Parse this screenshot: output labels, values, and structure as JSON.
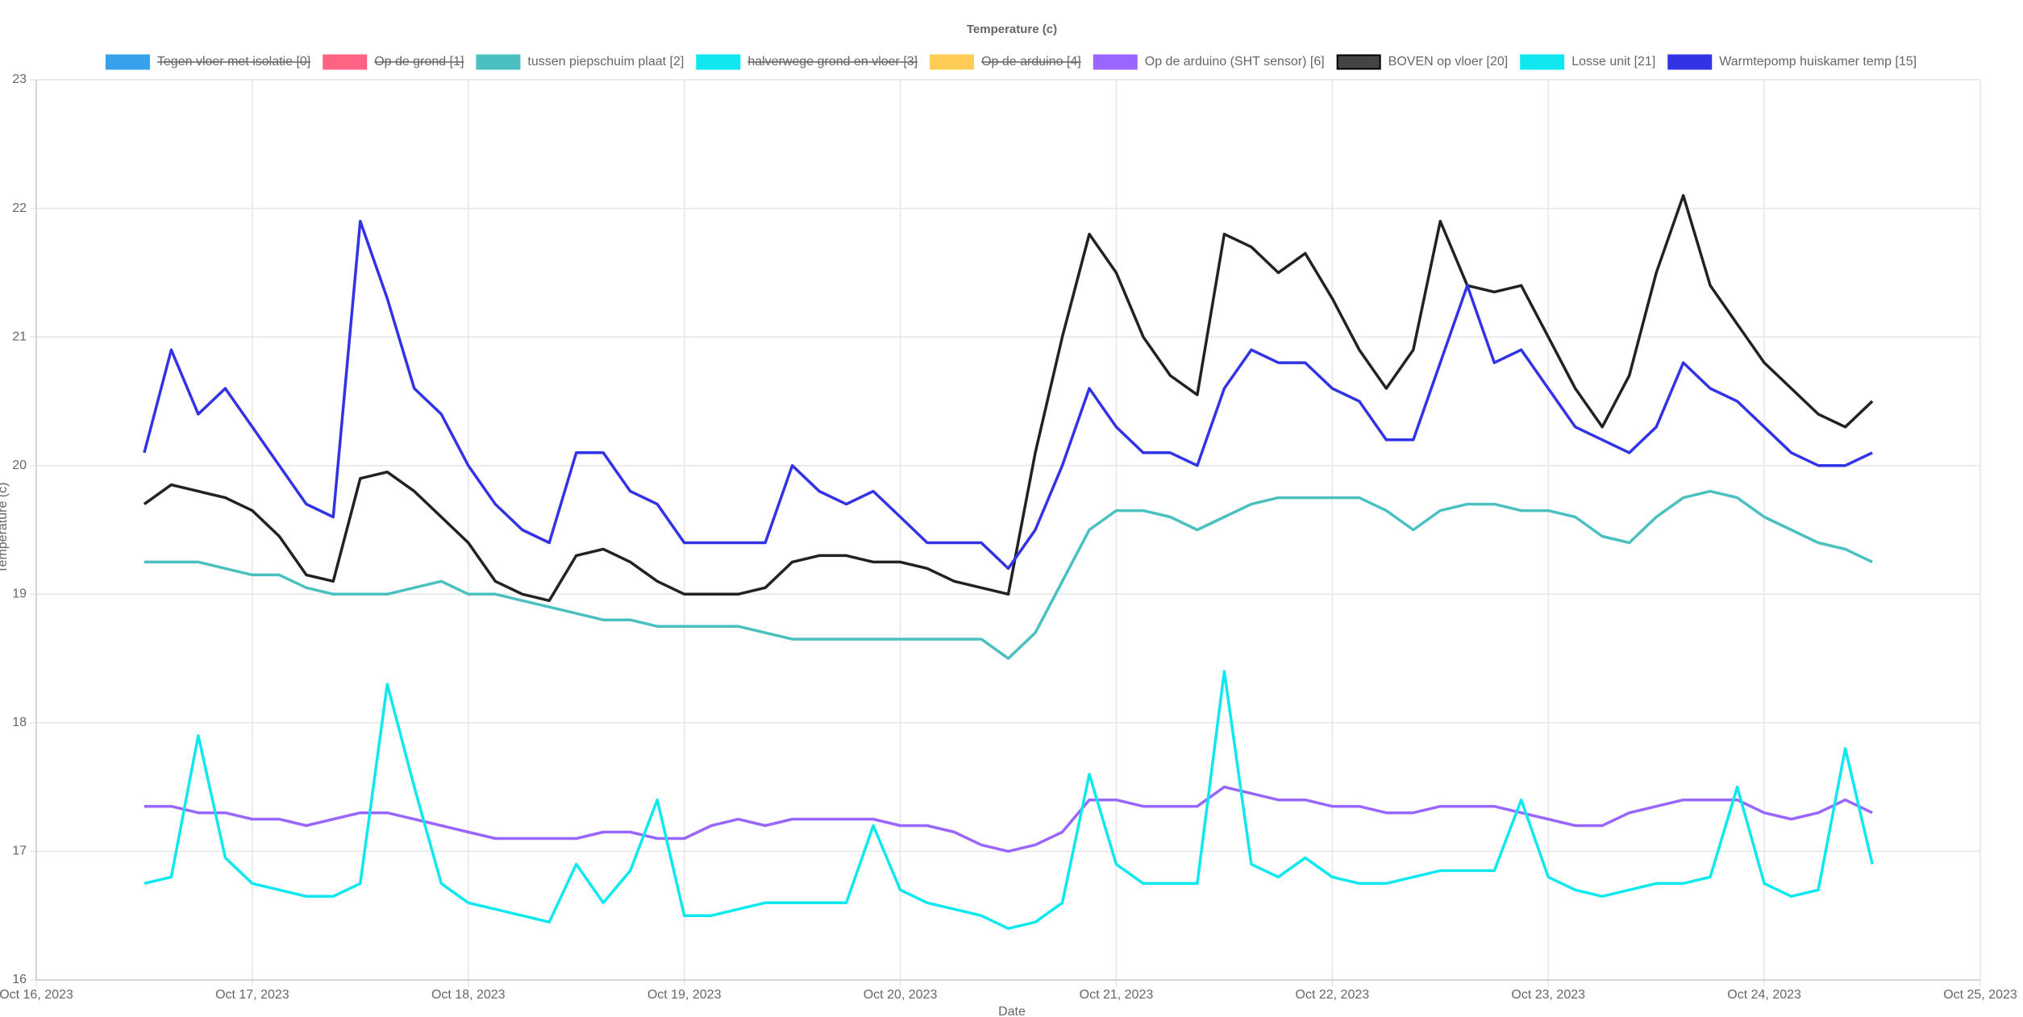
{
  "chart_data": {
    "type": "line",
    "title": "Temperature (c)",
    "xlabel": "Date",
    "ylabel": "Temperature (c)",
    "grid": true,
    "legend": "top",
    "ylim": [
      16,
      23
    ],
    "yticks": [
      16,
      17,
      18,
      19,
      20,
      21,
      22,
      23
    ],
    "xlim": [
      "2023-10-16T00:00",
      "2023-10-25T00:00"
    ],
    "xticks": [
      {
        "value": "2023-10-16T00:00",
        "label": "Oct 16, 2023"
      },
      {
        "value": "2023-10-17T00:00",
        "label": "Oct 17, 2023"
      },
      {
        "value": "2023-10-18T00:00",
        "label": "Oct 18, 2023"
      },
      {
        "value": "2023-10-19T00:00",
        "label": "Oct 19, 2023"
      },
      {
        "value": "2023-10-20T00:00",
        "label": "Oct 20, 2023"
      },
      {
        "value": "2023-10-21T00:00",
        "label": "Oct 21, 2023"
      },
      {
        "value": "2023-10-22T00:00",
        "label": "Oct 22, 2023"
      },
      {
        "value": "2023-10-23T00:00",
        "label": "Oct 23, 2023"
      },
      {
        "value": "2023-10-24T00:00",
        "label": "Oct 24, 2023"
      },
      {
        "value": "2023-10-25T00:00",
        "label": "Oct 25, 2023"
      }
    ],
    "x": [
      "2023-10-16T12:00",
      "2023-10-16T15:00",
      "2023-10-16T18:00",
      "2023-10-16T21:00",
      "2023-10-17T00:00",
      "2023-10-17T03:00",
      "2023-10-17T06:00",
      "2023-10-17T09:00",
      "2023-10-17T12:00",
      "2023-10-17T15:00",
      "2023-10-17T18:00",
      "2023-10-17T21:00",
      "2023-10-18T00:00",
      "2023-10-18T03:00",
      "2023-10-18T06:00",
      "2023-10-18T09:00",
      "2023-10-18T12:00",
      "2023-10-18T15:00",
      "2023-10-18T18:00",
      "2023-10-18T21:00",
      "2023-10-19T00:00",
      "2023-10-19T03:00",
      "2023-10-19T06:00",
      "2023-10-19T09:00",
      "2023-10-19T12:00",
      "2023-10-19T15:00",
      "2023-10-19T18:00",
      "2023-10-19T21:00",
      "2023-10-20T00:00",
      "2023-10-20T03:00",
      "2023-10-20T06:00",
      "2023-10-20T09:00",
      "2023-10-20T12:00",
      "2023-10-20T15:00",
      "2023-10-20T18:00",
      "2023-10-20T21:00",
      "2023-10-21T00:00",
      "2023-10-21T03:00",
      "2023-10-21T06:00",
      "2023-10-21T09:00",
      "2023-10-21T12:00",
      "2023-10-21T15:00",
      "2023-10-21T18:00",
      "2023-10-21T21:00",
      "2023-10-22T00:00",
      "2023-10-22T03:00",
      "2023-10-22T06:00",
      "2023-10-22T09:00",
      "2023-10-22T12:00",
      "2023-10-22T15:00",
      "2023-10-22T18:00",
      "2023-10-22T21:00",
      "2023-10-23T00:00",
      "2023-10-23T03:00",
      "2023-10-23T06:00",
      "2023-10-23T09:00",
      "2023-10-23T12:00",
      "2023-10-23T15:00",
      "2023-10-23T18:00",
      "2023-10-23T21:00",
      "2023-10-24T00:00",
      "2023-10-24T03:00",
      "2023-10-24T06:00",
      "2023-10-24T09:00",
      "2023-10-24T12:00"
    ],
    "series": [
      {
        "name": "Tegen vloer met isolatie [0]",
        "color": "#36a2eb",
        "hidden": true
      },
      {
        "name": "Op de grond [1]",
        "color": "#ff6384",
        "hidden": true
      },
      {
        "name": "tussen piepschuim plaat [2]",
        "color": "#4bc0c0",
        "values": [
          19.25,
          19.25,
          19.25,
          19.2,
          19.15,
          19.15,
          19.05,
          19.0,
          19.0,
          19.0,
          19.05,
          19.1,
          19.0,
          19.0,
          18.95,
          18.9,
          18.85,
          18.8,
          18.8,
          18.75,
          18.75,
          18.75,
          18.75,
          18.7,
          18.65,
          18.65,
          18.65,
          18.65,
          18.65,
          18.65,
          18.65,
          18.65,
          18.5,
          18.7,
          19.1,
          19.5,
          19.65,
          19.65,
          19.6,
          19.5,
          19.6,
          19.7,
          19.75,
          19.75,
          19.75,
          19.75,
          19.65,
          19.5,
          19.65,
          19.7,
          19.7,
          19.65,
          19.65,
          19.6,
          19.45,
          19.4,
          19.6,
          19.75,
          19.8,
          19.75,
          19.6,
          19.5,
          19.4,
          19.35,
          19.25
        ]
      },
      {
        "name": "halverwege grond en vloer [3]",
        "color": "#0ee8ee",
        "hidden": true
      },
      {
        "name": "Op de arduino [4]",
        "color": "#ffcd56",
        "hidden": true
      },
      {
        "name": "Op de arduino (SHT sensor) [6]",
        "color": "#9966ff",
        "values": [
          17.35,
          17.35,
          17.3,
          17.3,
          17.25,
          17.25,
          17.2,
          17.25,
          17.3,
          17.3,
          17.25,
          17.2,
          17.15,
          17.1,
          17.1,
          17.1,
          17.1,
          17.15,
          17.15,
          17.1,
          17.1,
          17.2,
          17.25,
          17.2,
          17.25,
          17.25,
          17.25,
          17.25,
          17.2,
          17.2,
          17.15,
          17.05,
          17.0,
          17.05,
          17.15,
          17.4,
          17.4,
          17.35,
          17.35,
          17.35,
          17.5,
          17.45,
          17.4,
          17.4,
          17.35,
          17.35,
          17.3,
          17.3,
          17.35,
          17.35,
          17.35,
          17.3,
          17.25,
          17.2,
          17.2,
          17.3,
          17.35,
          17.4,
          17.4,
          17.4,
          17.3,
          17.25,
          17.3,
          17.4,
          17.3
        ]
      },
      {
        "name": "BOVEN op vloer [20]",
        "color": "#222222",
        "values": [
          19.7,
          19.85,
          19.8,
          19.75,
          19.65,
          19.45,
          19.15,
          19.1,
          19.9,
          19.95,
          19.8,
          19.6,
          19.4,
          19.1,
          19.0,
          18.95,
          19.3,
          19.35,
          19.25,
          19.1,
          19.0,
          19.0,
          19.0,
          19.05,
          19.25,
          19.3,
          19.3,
          19.25,
          19.25,
          19.2,
          19.1,
          19.05,
          19.0,
          20.1,
          21.0,
          21.8,
          21.5,
          21.0,
          20.7,
          20.55,
          21.8,
          21.7,
          21.5,
          21.65,
          21.3,
          20.9,
          20.6,
          20.9,
          21.9,
          21.4,
          21.35,
          21.4,
          21.0,
          20.6,
          20.3,
          20.7,
          21.5,
          22.1,
          21.4,
          21.1,
          20.8,
          20.6,
          20.4,
          20.3,
          20.5
        ]
      },
      {
        "name": "Losse unit [21]",
        "color": "#0ee8ee",
        "values": [
          16.75,
          16.8,
          17.9,
          16.95,
          16.75,
          16.7,
          16.65,
          16.65,
          16.75,
          18.3,
          17.5,
          16.75,
          16.6,
          16.55,
          16.5,
          16.45,
          16.9,
          16.6,
          16.85,
          17.4,
          16.5,
          16.5,
          16.55,
          16.6,
          16.6,
          16.6,
          16.6,
          17.2,
          16.7,
          16.6,
          16.55,
          16.5,
          16.4,
          16.45,
          16.6,
          17.6,
          16.9,
          16.75,
          16.75,
          16.75,
          18.4,
          16.9,
          16.8,
          16.95,
          16.8,
          16.75,
          16.75,
          16.8,
          16.85,
          16.85,
          16.85,
          17.4,
          16.8,
          16.7,
          16.65,
          16.7,
          16.75,
          16.75,
          16.8,
          17.5,
          16.75,
          16.65,
          16.7,
          17.8,
          16.9
        ]
      },
      {
        "name": "Warmtepomp huiskamer temp [15]",
        "color": "#3333e6",
        "values": [
          20.1,
          20.9,
          20.4,
          20.6,
          20.3,
          20.0,
          19.7,
          19.6,
          21.9,
          21.3,
          20.6,
          20.4,
          20.0,
          19.7,
          19.5,
          19.4,
          20.1,
          20.1,
          19.8,
          19.7,
          19.4,
          19.4,
          19.4,
          19.4,
          20.0,
          19.8,
          19.7,
          19.8,
          19.6,
          19.4,
          19.4,
          19.4,
          19.2,
          19.5,
          20.0,
          20.6,
          20.3,
          20.1,
          20.1,
          20.0,
          20.6,
          20.9,
          20.8,
          20.8,
          20.6,
          20.5,
          20.2,
          20.2,
          20.8,
          21.4,
          20.8,
          20.9,
          20.6,
          20.3,
          20.2,
          20.1,
          20.3,
          20.8,
          20.6,
          20.5,
          20.3,
          20.1,
          20.0,
          20.0,
          20.1
        ]
      }
    ]
  }
}
